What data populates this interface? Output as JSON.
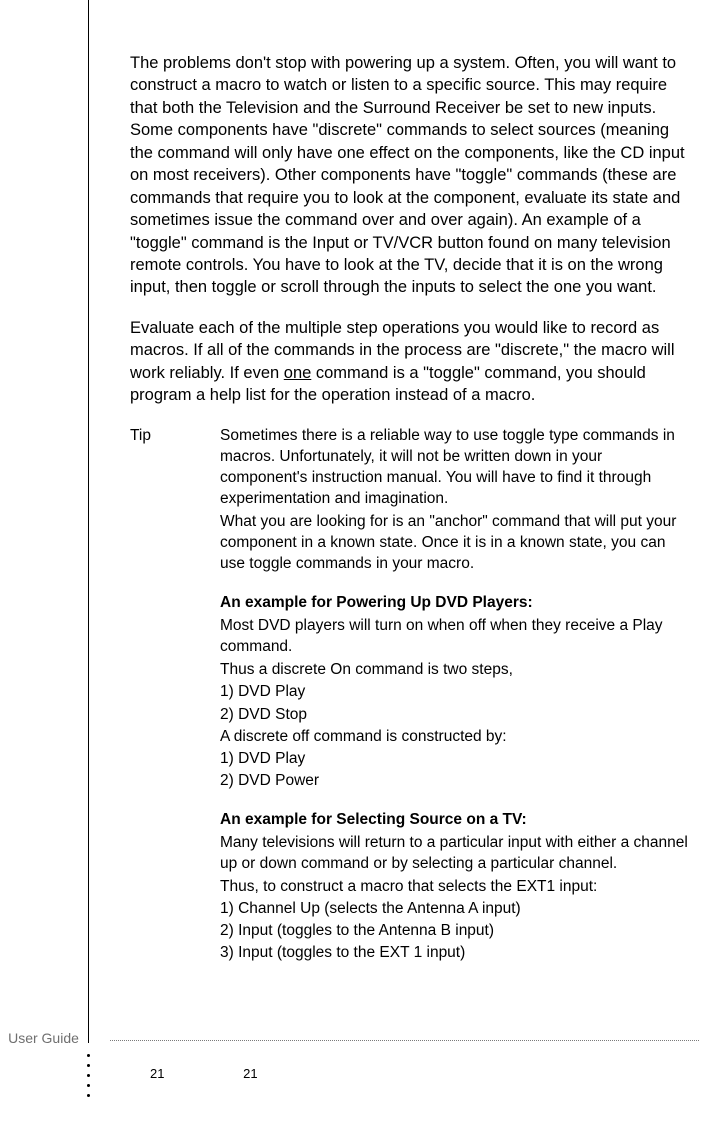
{
  "para1": "The problems don't stop with powering up a system. Often, you will want to construct a macro to watch or listen to a specific source. This may require that both the Television and the Surround Receiver be set to new inputs. Some components have \"discrete\" commands to select sources (meaning the command will only have one effect on the components, like the CD input on most receivers). Other components have \"toggle\" commands (these are commands that require you to look at the component, evaluate its state and sometimes issue the command over and over again). An example of a \"toggle\" command is the Input or TV/VCR button found on many television remote controls. You have to look at the TV, decide that it is on the wrong input, then toggle or scroll through the inputs to select the one you want.",
  "para2_a": "Evaluate each of the multiple step operations you would like to record as macros. If all of the commands in the process are \"discrete,\" the macro will work reliably. If even ",
  "para2_u": "one",
  "para2_b": " command is a \"toggle\" command, you should program a help list for the operation instead of a macro.",
  "tip_label": "Tip",
  "tip": {
    "intro1": "Sometimes there is a reliable way to use toggle type commands in macros. Unfortunately, it will not be written down in your component's instruction manual. You will have to find it through experimentation and imagination.",
    "intro2": "What you are looking for is an \"anchor\" command that will put your component in a known state. Once it is in a known state, you can use toggle commands in your macro.",
    "ex1_h": "An example for Powering Up DVD Players:",
    "ex1_1": "Most DVD players will turn on when off when they receive a Play command.",
    "ex1_2": "Thus a discrete On command is two steps,",
    "ex1_3": "1) DVD Play",
    "ex1_4": "2) DVD Stop",
    "ex1_5": "A discrete off command is constructed by:",
    "ex1_6": "1) DVD Play",
    "ex1_7": "2) DVD Power",
    "ex2_h": "An example for Selecting Source on a TV:",
    "ex2_1": "Many televisions will return to a particular input with either a channel up or down command or by selecting a particular channel.",
    "ex2_2": "Thus, to construct a macro that selects the EXT1 input:",
    "ex2_3": "1) Channel Up (selects the Antenna A input)",
    "ex2_4": "2) Input (toggles to the Antenna B input)",
    "ex2_5": "3) Input (toggles to the EXT 1 input)"
  },
  "footer_label": "User Guide",
  "page_a": "21",
  "page_b": "21"
}
